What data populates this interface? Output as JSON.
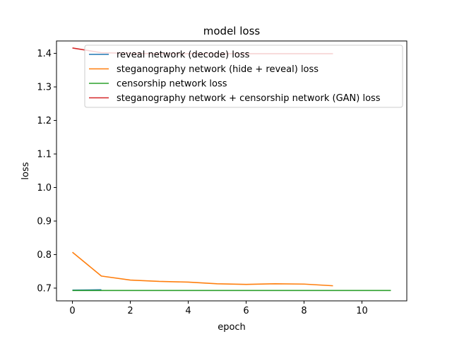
{
  "chart_data": {
    "type": "line",
    "title": "model loss",
    "xlabel": "epoch",
    "ylabel": "loss",
    "xlim": [
      -0.55,
      11.55
    ],
    "ylim": [
      0.662,
      1.437
    ],
    "xticks": [
      0,
      2,
      4,
      6,
      8,
      10
    ],
    "yticks": [
      0.7,
      0.8,
      0.9,
      1.0,
      1.1,
      1.2,
      1.3,
      1.4
    ],
    "ytick_labels": [
      "0.7",
      "0.8",
      "0.9",
      "1.0",
      "1.1",
      "1.2",
      "1.3",
      "1.4"
    ],
    "grid": false,
    "legend_position": "top-right",
    "series": [
      {
        "name": "reveal network (decode) loss",
        "color": "#1f77b4",
        "x": [
          0,
          1
        ],
        "y": [
          0.694,
          0.695
        ]
      },
      {
        "name": "steganography network (hide + reveal) loss",
        "color": "#ff7f0e",
        "x": [
          0,
          1,
          2,
          3,
          4,
          5,
          6,
          7,
          8,
          9
        ],
        "y": [
          0.807,
          0.736,
          0.724,
          0.72,
          0.718,
          0.713,
          0.711,
          0.713,
          0.712,
          0.707
        ]
      },
      {
        "name": "censorship network loss",
        "color": "#2ca02c",
        "x": [
          0,
          1,
          2,
          3,
          4,
          5,
          6,
          7,
          8,
          9,
          10,
          11
        ],
        "y": [
          0.693,
          0.693,
          0.693,
          0.693,
          0.693,
          0.693,
          0.693,
          0.693,
          0.693,
          0.693,
          0.693,
          0.693
        ]
      },
      {
        "name": "steganography network + censorship network (GAN) loss",
        "color": "#d62728",
        "x": [
          0,
          1,
          2,
          3,
          4,
          5,
          6,
          7,
          8,
          9
        ],
        "y": [
          1.416,
          1.402,
          1.4,
          1.399,
          1.399,
          1.399,
          1.399,
          1.399,
          1.399,
          1.399
        ]
      }
    ]
  }
}
